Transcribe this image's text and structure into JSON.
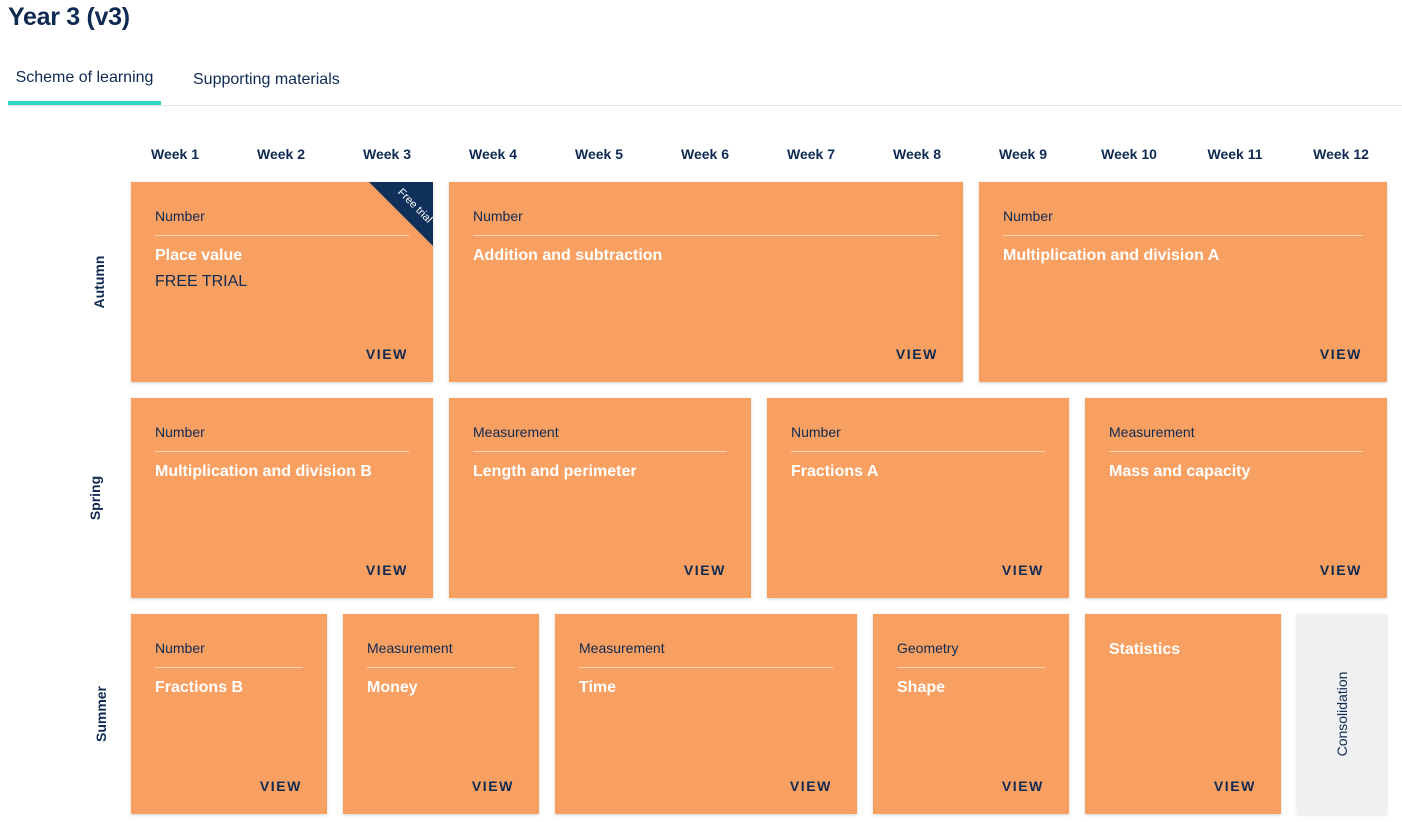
{
  "title": "Year 3 (v3)",
  "tabs": [
    "Scheme of learning",
    "Supporting materials"
  ],
  "weeks": [
    "Week 1",
    "Week 2",
    "Week 3",
    "Week 4",
    "Week 5",
    "Week 6",
    "Week 7",
    "Week 8",
    "Week 9",
    "Week 10",
    "Week 11",
    "Week 12"
  ],
  "terms": [
    "Autumn",
    "Spring",
    "Summer"
  ],
  "view_label": "VIEW",
  "ribbon_label": "Free trial",
  "free_trial_label": "FREE TRIAL",
  "consolidation_label": "Consolidation",
  "cards": {
    "autumn": [
      {
        "category": "Number",
        "title": "Place value"
      },
      {
        "category": "Number",
        "title": "Addition and subtraction"
      },
      {
        "category": "Number",
        "title": "Multiplication and division A"
      }
    ],
    "spring": [
      {
        "category": "Number",
        "title": "Multiplication and division B"
      },
      {
        "category": "Measurement",
        "title": "Length and perimeter"
      },
      {
        "category": "Number",
        "title": "Fractions A"
      },
      {
        "category": "Measurement",
        "title": "Mass and capacity"
      }
    ],
    "summer": [
      {
        "category": "Number",
        "title": "Fractions B"
      },
      {
        "category": "Measurement",
        "title": "Money"
      },
      {
        "category": "Measurement",
        "title": "Time"
      },
      {
        "category": "Geometry",
        "title": "Shape"
      },
      {
        "category": "",
        "title": "Statistics"
      }
    ]
  },
  "colors": {
    "card": "#f7a062",
    "navy": "#0f2a52",
    "tab_underline": "#2fd3c3",
    "consolidation_bg": "#eef0f2"
  }
}
